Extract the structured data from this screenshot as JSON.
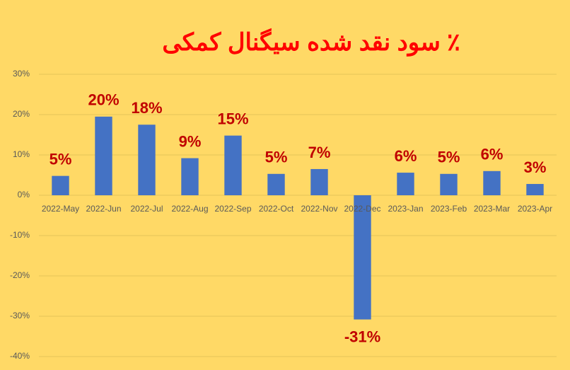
{
  "chart_data": {
    "type": "bar",
    "title": "٪ سود نقد شده سیگنال کمکی",
    "categories": [
      "2022-May",
      "2022-Jun",
      "2022-Jul",
      "2022-Aug",
      "2022-Sep",
      "2022-Oct",
      "2022-Nov",
      "2022-Dec",
      "2023-Jan",
      "2023-Feb",
      "2023-Mar",
      "2023-Apr"
    ],
    "values": [
      4.8,
      19.5,
      17.5,
      9.2,
      14.8,
      5.3,
      6.5,
      -30.8,
      5.6,
      5.3,
      6.0,
      2.8
    ],
    "value_labels": [
      "5%",
      "20%",
      "18%",
      "9%",
      "15%",
      "5%",
      "7%",
      "-31%",
      "6%",
      "5%",
      "6%",
      "3%"
    ],
    "color": "#4472c4",
    "ylim": [
      -40,
      30
    ],
    "yticks": [
      {
        "value": -40,
        "label": "-40%"
      },
      {
        "value": -30,
        "label": "-30%"
      },
      {
        "value": -20,
        "label": "-20%"
      },
      {
        "value": -10,
        "label": "-10%"
      },
      {
        "value": 0,
        "label": "0%"
      },
      {
        "value": 10,
        "label": "10%"
      },
      {
        "value": 20,
        "label": "20%"
      },
      {
        "value": 30,
        "label": "30%"
      }
    ],
    "grid": true
  }
}
